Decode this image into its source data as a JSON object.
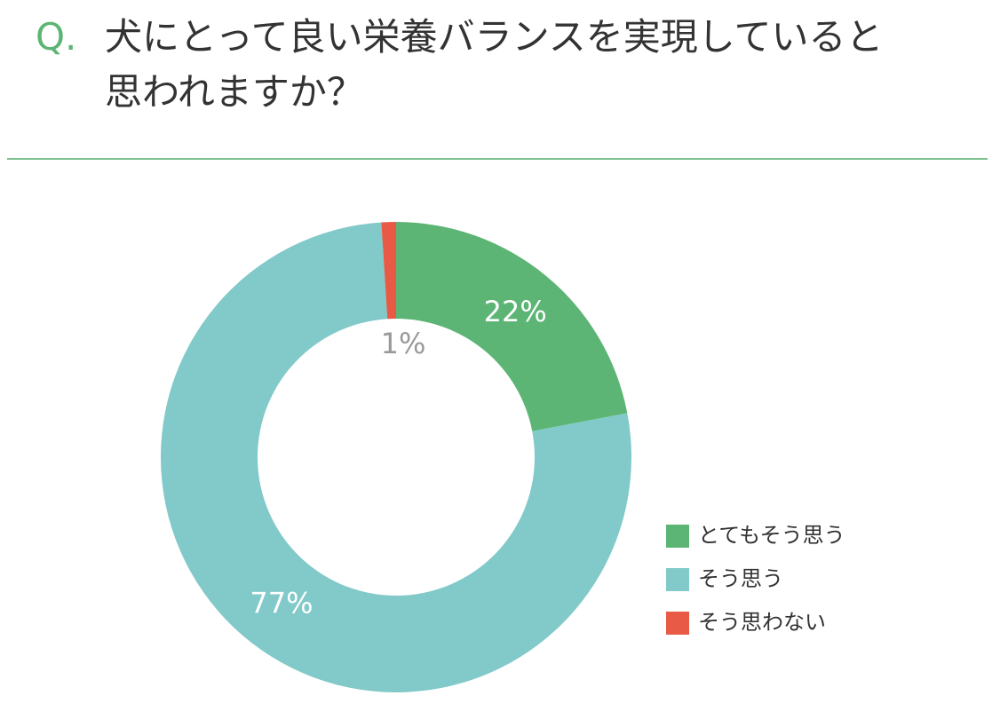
{
  "chart_data": {
    "type": "donut",
    "title_prefix": "Q.",
    "title_lines": [
      "犬にとって良い栄養バランスを実現していると",
      "思われますか？"
    ],
    "categories": [
      "とてもそう思う",
      "そう思う",
      "そう思わない"
    ],
    "values": [
      22,
      77,
      1
    ],
    "value_labels": [
      "22%",
      "77%",
      "1%"
    ],
    "colors": [
      "#5cb574",
      "#82c9c9",
      "#e85a45"
    ],
    "legend": "right"
  }
}
